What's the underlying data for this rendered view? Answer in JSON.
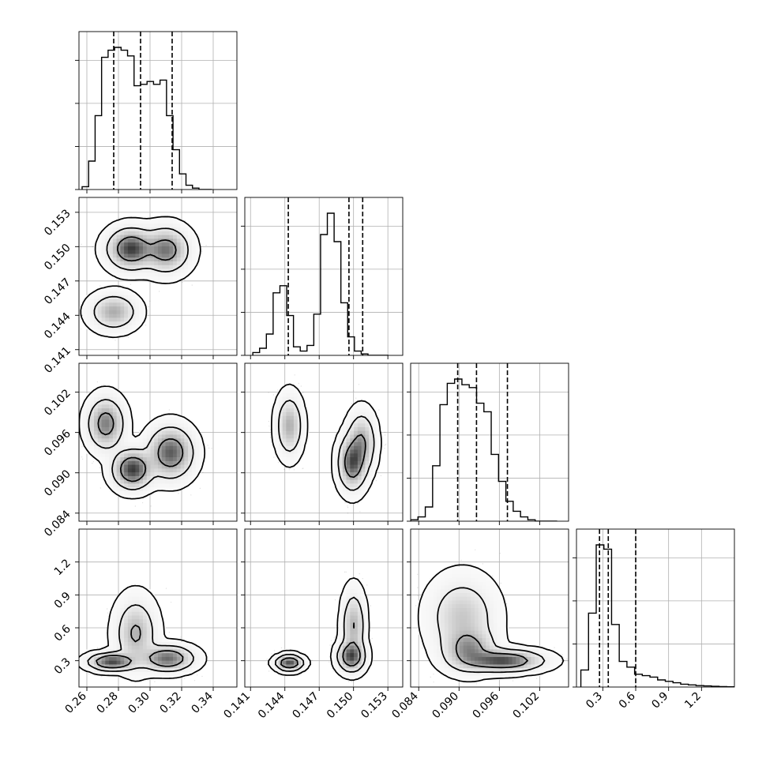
{
  "chart_data": {
    "type": "corner",
    "parameters": [
      {
        "range": [
          0.255,
          0.355
        ],
        "ticks": [
          0.26,
          0.28,
          0.3,
          0.32,
          0.34
        ],
        "tick_labels": [
          "0.26",
          "0.28",
          "0.30",
          "0.32",
          "0.34"
        ],
        "quantiles": [
          0.277,
          0.294,
          0.314
        ],
        "hist": {
          "edges_start": 0.257,
          "bin_width": 0.00411,
          "counts": [
            0.02,
            0.2,
            0.52,
            0.93,
            0.98,
            1.0,
            0.98,
            0.94,
            0.73,
            0.74,
            0.76,
            0.74,
            0.77,
            0.52,
            0.28,
            0.11,
            0.03,
            0.01,
            0,
            0
          ]
        }
      },
      {
        "range": [
          0.1405,
          0.1543
        ],
        "ticks": [
          0.141,
          0.144,
          0.147,
          0.15,
          0.153
        ],
        "tick_labels": [
          "0.141",
          "0.144",
          "0.147",
          "0.150",
          "0.153"
        ],
        "quantiles": [
          0.1443,
          0.1496,
          0.1508
        ],
        "hist": {
          "edges_start": 0.1412,
          "bin_width": 0.000592,
          "counts": [
            0.02,
            0.05,
            0.15,
            0.44,
            0.49,
            0.28,
            0.06,
            0.03,
            0.07,
            0.29,
            0.85,
            1.0,
            0.8,
            0.37,
            0.13,
            0.03,
            0.01,
            0,
            0,
            0
          ]
        }
      },
      {
        "range": [
          0.0828,
          0.1063
        ],
        "ticks": [
          0.084,
          0.09,
          0.096,
          0.102
        ],
        "tick_labels": [
          "0.084",
          "0.090",
          "0.096",
          "0.102"
        ],
        "quantiles": [
          0.0898,
          0.0926,
          0.0972
        ],
        "hist": {
          "edges_start": 0.0828,
          "bin_width": 0.00109,
          "counts": [
            0.01,
            0.03,
            0.1,
            0.39,
            0.82,
            0.97,
            1.0,
            0.96,
            0.94,
            0.83,
            0.77,
            0.47,
            0.28,
            0.14,
            0.07,
            0.03,
            0.01,
            0,
            0,
            0
          ]
        }
      },
      {
        "range": [
          0.06,
          1.5
        ],
        "ticks": [
          0.3,
          0.6,
          0.9,
          1.2
        ],
        "tick_labels": [
          "0.3",
          "0.6",
          "0.9",
          "1.2"
        ],
        "quantiles": [
          0.27,
          0.35,
          0.6
        ],
        "hist": {
          "edges_start": 0.1,
          "bin_width": 0.07,
          "counts": [
            0.12,
            0.52,
            1.0,
            0.97,
            0.44,
            0.18,
            0.14,
            0.09,
            0.08,
            0.07,
            0.05,
            0.04,
            0.03,
            0.02,
            0.015,
            0.01,
            0.008,
            0.005,
            0.003,
            0.002
          ]
        }
      }
    ],
    "pairs": [
      {
        "row": 1,
        "col": 0,
        "modes": [
          {
            "mx": 0.288,
            "my": 0.1498,
            "sx": 0.0075,
            "sy": 0.0009,
            "w": 1.0,
            "n": 1100
          },
          {
            "mx": 0.31,
            "my": 0.1497,
            "sx": 0.0075,
            "sy": 0.001,
            "w": 0.75,
            "n": 800
          },
          {
            "mx": 0.277,
            "my": 0.1443,
            "sx": 0.0075,
            "sy": 0.0008,
            "w": 0.5,
            "n": 550
          }
        ]
      },
      {
        "row": 2,
        "col": 0,
        "modes": [
          {
            "mx": 0.289,
            "my": 0.0905,
            "sx": 0.0065,
            "sy": 0.0015,
            "w": 1.0,
            "n": 700
          },
          {
            "mx": 0.272,
            "my": 0.0973,
            "sx": 0.006,
            "sy": 0.002,
            "w": 0.7,
            "n": 500
          },
          {
            "mx": 0.313,
            "my": 0.093,
            "sx": 0.0075,
            "sy": 0.002,
            "w": 0.85,
            "n": 700
          }
        ]
      },
      {
        "row": 2,
        "col": 1,
        "modes": [
          {
            "mx": 0.1444,
            "my": 0.097,
            "sx": 0.00055,
            "sy": 0.0022,
            "w": 0.55,
            "n": 650
          },
          {
            "mx": 0.1499,
            "my": 0.0915,
            "sx": 0.0006,
            "sy": 0.002,
            "w": 1.0,
            "n": 850
          },
          {
            "mx": 0.1507,
            "my": 0.0945,
            "sx": 0.0006,
            "sy": 0.0022,
            "w": 0.6,
            "n": 550
          }
        ]
      },
      {
        "row": 3,
        "col": 0,
        "modes": [
          {
            "mx": 0.276,
            "my": 0.29,
            "sx": 0.0075,
            "sy": 0.04,
            "w": 1.0,
            "n": 600
          },
          {
            "mx": 0.311,
            "my": 0.32,
            "sx": 0.0085,
            "sy": 0.06,
            "w": 0.8,
            "n": 550
          },
          {
            "mx": 0.291,
            "my": 0.55,
            "sx": 0.0065,
            "sy": 0.16,
            "w": 0.45,
            "n": 650
          }
        ]
      },
      {
        "row": 3,
        "col": 1,
        "modes": [
          {
            "mx": 0.1444,
            "my": 0.28,
            "sx": 0.0006,
            "sy": 0.035,
            "w": 1.0,
            "n": 650
          },
          {
            "mx": 0.1498,
            "my": 0.34,
            "sx": 0.0006,
            "sy": 0.07,
            "w": 0.9,
            "n": 700
          },
          {
            "mx": 0.15,
            "my": 0.62,
            "sx": 0.0005,
            "sy": 0.16,
            "w": 0.45,
            "n": 650
          }
        ]
      },
      {
        "row": 3,
        "col": 2,
        "modes": [
          {
            "mx": 0.0965,
            "my": 0.3,
            "sx": 0.003,
            "sy": 0.05,
            "w": 1.0,
            "n": 900
          },
          {
            "mx": 0.0915,
            "my": 0.4,
            "sx": 0.002,
            "sy": 0.1,
            "w": 0.6,
            "n": 600
          },
          {
            "mx": 0.0905,
            "my": 0.7,
            "sx": 0.0025,
            "sy": 0.18,
            "w": 0.35,
            "n": 600
          }
        ]
      }
    ],
    "grid": true,
    "colors": {
      "line": "#000000",
      "scatter": "#000000",
      "grid": "#b0b0b0"
    }
  }
}
